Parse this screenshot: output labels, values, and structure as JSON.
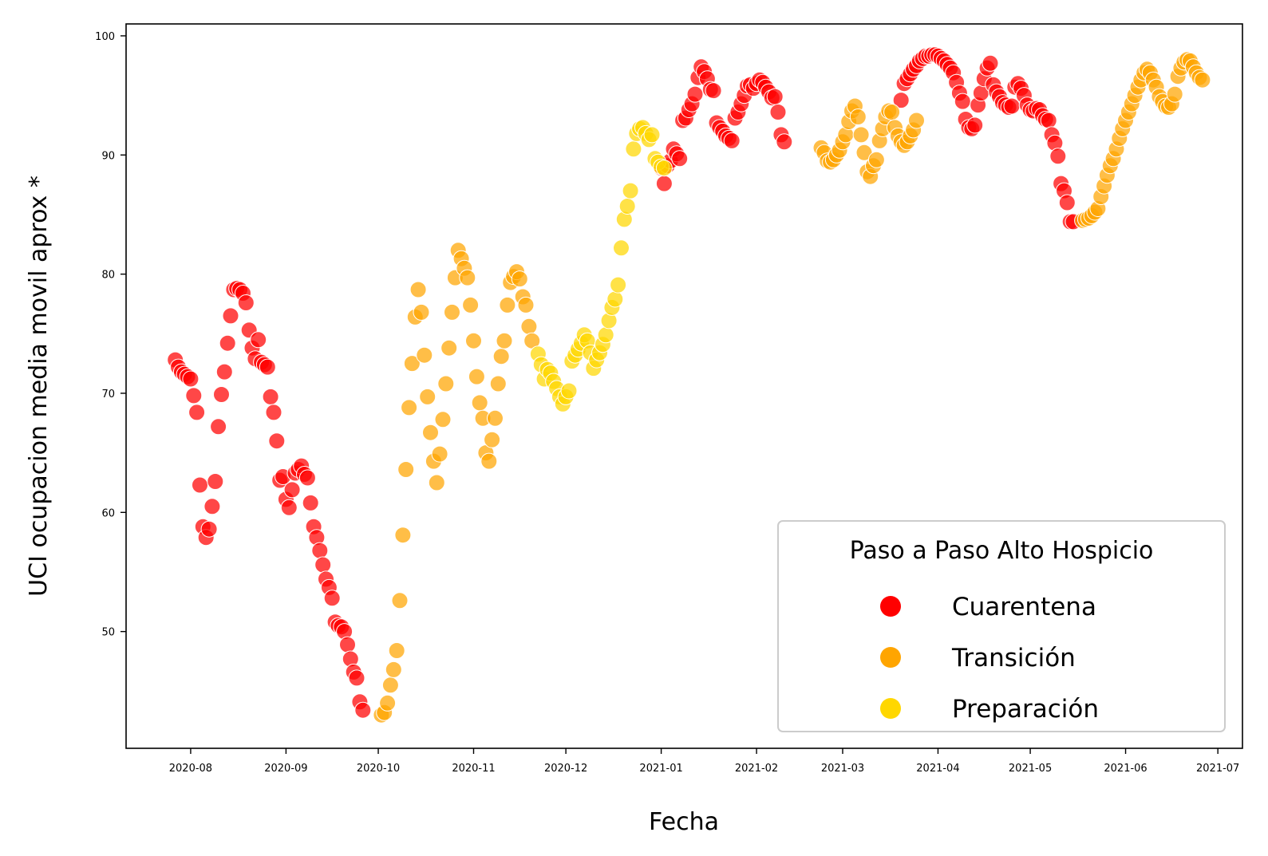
{
  "chart_data": {
    "type": "scatter",
    "xlabel": "Fecha",
    "ylabel": "UCI ocupacion media movil aprox *",
    "x_axis": {
      "type": "date",
      "range": [
        "2020-07-11",
        "2021-07-09"
      ],
      "ticks": [
        "2020-08-01",
        "2020-09-01",
        "2020-10-01",
        "2020-11-01",
        "2020-12-01",
        "2021-01-01",
        "2021-02-01",
        "2021-03-01",
        "2021-04-01",
        "2021-05-01",
        "2021-06-01",
        "2021-07-01"
      ],
      "tick_labels": [
        "2020-08",
        "2020-09",
        "2020-10",
        "2020-11",
        "2020-12",
        "2021-01",
        "2021-02",
        "2021-03",
        "2021-04",
        "2021-05",
        "2021-06",
        "2021-07"
      ]
    },
    "y_axis": {
      "range": [
        40.2,
        101.0
      ],
      "ticks": [
        50,
        60,
        70,
        80,
        90,
        100
      ],
      "tick_labels": [
        "50",
        "60",
        "70",
        "80",
        "90",
        "100"
      ]
    },
    "grid": false,
    "legend": {
      "title": "Paso a Paso Alto Hospicio",
      "placement": "lower-right",
      "entries": [
        "Cuarentena",
        "Transición",
        "Preparación"
      ]
    },
    "series": [
      {
        "name": "Cuarentena",
        "color": "#ff0000",
        "segments": [
          {
            "start": "2020-07-27",
            "values": [
              72.8,
              72.2,
              71.8,
              71.6,
              71.4,
              71.2,
              69.8,
              68.4,
              62.3,
              58.8,
              57.9,
              58.6,
              60.5,
              62.6,
              67.2,
              69.9,
              71.8,
              74.2,
              76.5,
              78.7,
              78.8,
              78.7,
              78.4,
              77.6,
              75.3,
              73.8,
              72.9,
              74.5,
              72.6,
              72.4,
              72.2,
              69.7,
              68.4,
              66.0,
              62.7,
              63.0,
              61.1,
              60.4,
              61.9,
              63.3,
              63.6,
              63.9,
              63.2,
              62.9,
              60.8,
              58.8,
              57.9,
              56.8,
              55.6,
              54.4,
              53.7,
              52.8,
              50.8,
              50.5,
              50.4,
              50.0,
              48.9,
              47.7,
              46.6,
              46.1,
              44.1,
              43.4
            ]
          },
          {
            "start": "2021-01-01",
            "values": [
              88.9,
              87.6,
              89.1,
              89.5,
              90.5,
              90.1,
              89.7,
              92.9,
              93.1,
              93.8,
              94.3,
              95.1,
              96.5,
              97.4,
              97.0,
              96.4,
              95.5,
              95.4,
              92.7,
              92.3,
              92.0,
              91.6,
              91.4,
              91.2,
              93.1,
              93.6,
              94.3,
              95.0,
              95.8,
              95.9,
              95.6,
              96.0,
              96.3,
              96.1,
              95.7,
              95.3,
              94.8,
              94.9,
              93.6,
              91.7,
              91.1
            ]
          },
          {
            "start": "2021-03-20",
            "values": [
              94.6,
              96.0,
              96.4,
              96.8,
              97.2,
              97.5,
              97.9,
              98.1,
              98.3,
              98.3,
              98.4,
              98.4,
              98.3,
              98.1,
              97.9,
              97.6,
              97.3,
              96.9,
              96.1,
              95.2,
              94.5,
              93.0,
              92.3,
              92.2,
              92.5,
              94.2,
              95.2,
              96.4,
              97.3,
              97.7,
              95.9,
              95.3,
              94.9,
              94.4,
              94.2,
              94.0,
              94.1,
              95.7,
              96.0,
              95.6,
              95.0,
              94.2,
              93.8,
              93.7,
              93.9,
              93.8,
              93.3,
              93.0,
              92.9,
              91.7,
              91.0,
              89.9,
              87.6,
              87.0,
              86.0,
              84.4,
              84.4
            ]
          }
        ]
      },
      {
        "name": "Transición",
        "color": "#ffa500",
        "segments": [
          {
            "start": "2020-10-02",
            "values": [
              43.0,
              43.2,
              44.0,
              45.5,
              46.8,
              48.4,
              52.6,
              58.1,
              63.6,
              68.8,
              72.5,
              76.4,
              78.7,
              76.8,
              73.2,
              69.7,
              66.7,
              64.3,
              62.5,
              64.9,
              67.8,
              70.8,
              73.8,
              76.8,
              79.7,
              82.0,
              81.3,
              80.5,
              79.7,
              77.4,
              74.4,
              71.4,
              69.2,
              67.9,
              65.0,
              64.3,
              66.1,
              67.9,
              70.8,
              73.1,
              74.4,
              77.4,
              79.3,
              79.8,
              80.2,
              79.6,
              78.1,
              77.4,
              75.6,
              74.4
            ]
          },
          {
            "start": "2021-02-22",
            "values": [
              90.6,
              90.2,
              89.5,
              89.4,
              89.6,
              90.0,
              90.4,
              91.1,
              91.7,
              92.8,
              93.7,
              94.1,
              93.2,
              91.7,
              90.2,
              88.6,
              88.2,
              89.1,
              89.6,
              91.2,
              92.2,
              93.2,
              93.7,
              93.6,
              92.3,
              91.6,
              91.1,
              90.8,
              91.1,
              91.6,
              92.1,
              92.9
            ]
          },
          {
            "start": "2021-05-18",
            "values": [
              84.5,
              84.6,
              84.7,
              84.9,
              85.2,
              85.5,
              86.5,
              87.4,
              88.3,
              89.1,
              89.7,
              90.5,
              91.4,
              92.2,
              92.9,
              93.6,
              94.3,
              95.0,
              95.7,
              96.3,
              96.9,
              97.2,
              96.9,
              96.3,
              95.7,
              94.9,
              94.5,
              94.1,
              94.0,
              94.3,
              95.1,
              96.6,
              97.3,
              97.8,
              98.0,
              97.9,
              97.4,
              96.9,
              96.5,
              96.3
            ]
          }
        ]
      },
      {
        "name": "Preparación",
        "color": "#ffd700",
        "segments": [
          {
            "start": "2020-11-22",
            "values": [
              73.3,
              72.4,
              71.2,
              72.0,
              71.7,
              71.0,
              70.4,
              69.7,
              69.1,
              69.7,
              70.2,
              72.7,
              73.2,
              73.7,
              74.2,
              74.9,
              74.4,
              73.4,
              72.1,
              72.8,
              73.4,
              74.1,
              74.9,
              76.1,
              77.2,
              77.9,
              79.1,
              82.2,
              84.6,
              85.7,
              87.0,
              90.5,
              91.8,
              92.2,
              92.3,
              91.8,
              91.3,
              91.7,
              89.7,
              89.4,
              89.0,
              88.9
            ]
          }
        ]
      }
    ]
  }
}
